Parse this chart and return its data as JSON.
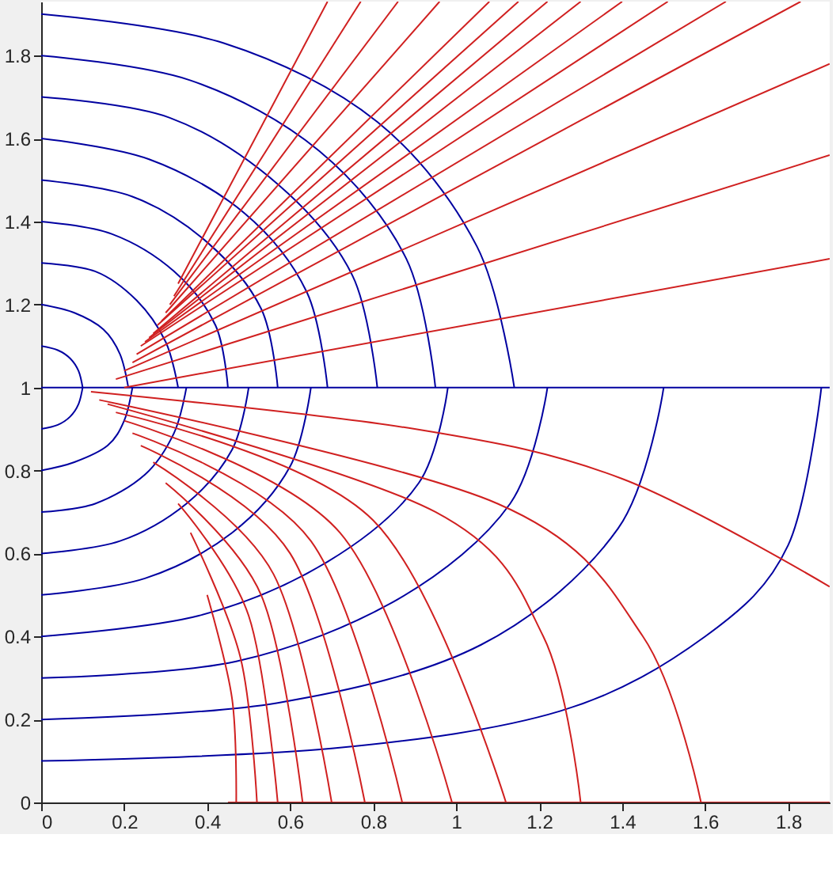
{
  "chart_data": {
    "type": "line",
    "xlim": [
      0,
      1.9
    ],
    "ylim": [
      0,
      1.93
    ],
    "xticks": [
      0,
      0.2,
      0.4,
      0.6,
      0.8,
      1,
      1.2,
      1.4,
      1.6,
      1.8
    ],
    "yticks": [
      0,
      0.2,
      0.4,
      0.6,
      0.8,
      1,
      1.2,
      1.4,
      1.6,
      1.8
    ],
    "grid": false,
    "legend": false,
    "marker": "none",
    "line_style": "solid",
    "series": [
      {
        "color": "#0000a0",
        "x": [
          0,
          1.9
        ],
        "values": [
          1,
          1
        ]
      },
      {
        "color": "#0000a0",
        "x": [
          0,
          0.04,
          0.07,
          0.09,
          0.1
        ],
        "values": [
          1.1,
          1.09,
          1.07,
          1.04,
          1
        ]
      },
      {
        "color": "#0000a0",
        "x": [
          0,
          0.08,
          0.15,
          0.19,
          0.21
        ],
        "values": [
          1.2,
          1.18,
          1.14,
          1.08,
          1
        ]
      },
      {
        "color": "#0000a0",
        "x": [
          0,
          0.13,
          0.23,
          0.3,
          0.33
        ],
        "values": [
          1.3,
          1.28,
          1.21,
          1.11,
          1
        ]
      },
      {
        "color": "#0000a0",
        "x": [
          0,
          0.17,
          0.32,
          0.42,
          0.45
        ],
        "values": [
          1.4,
          1.37,
          1.28,
          1.15,
          1
        ]
      },
      {
        "color": "#0000a0",
        "x": [
          0,
          0.22,
          0.4,
          0.53,
          0.57
        ],
        "values": [
          1.5,
          1.46,
          1.35,
          1.19,
          1
        ]
      },
      {
        "color": "#0000a0",
        "x": [
          0,
          0.26,
          0.49,
          0.64,
          0.69
        ],
        "values": [
          1.6,
          1.55,
          1.42,
          1.23,
          1
        ]
      },
      {
        "color": "#0000a0",
        "x": [
          0,
          0.31,
          0.57,
          0.75,
          0.81
        ],
        "values": [
          1.7,
          1.65,
          1.49,
          1.27,
          1
        ]
      },
      {
        "color": "#0000a0",
        "x": [
          0,
          0.36,
          0.67,
          0.88,
          0.95
        ],
        "values": [
          1.8,
          1.74,
          1.57,
          1.31,
          1
        ]
      },
      {
        "color": "#0000a0",
        "x": [
          0,
          0.44,
          0.81,
          1.05,
          1.14
        ],
        "values": [
          1.9,
          1.83,
          1.64,
          1.34,
          1
        ]
      },
      {
        "color": "#0000a0",
        "x": [
          0,
          0.04,
          0.07,
          0.09,
          0.1
        ],
        "values": [
          0.9,
          0.91,
          0.93,
          0.96,
          1
        ]
      },
      {
        "color": "#0000a0",
        "x": [
          0,
          0.08,
          0.16,
          0.2,
          0.22
        ],
        "values": [
          0.8,
          0.82,
          0.86,
          0.92,
          1
        ]
      },
      {
        "color": "#0000a0",
        "x": [
          0,
          0.13,
          0.25,
          0.32,
          0.35
        ],
        "values": [
          0.7,
          0.72,
          0.79,
          0.89,
          1
        ]
      },
      {
        "color": "#0000a0",
        "x": [
          0,
          0.19,
          0.35,
          0.46,
          0.5
        ],
        "values": [
          0.6,
          0.63,
          0.72,
          0.85,
          1
        ]
      },
      {
        "color": "#0000a0",
        "x": [
          0,
          0.25,
          0.46,
          0.6,
          0.65
        ],
        "values": [
          0.5,
          0.54,
          0.65,
          0.81,
          1
        ]
      },
      {
        "color": "#0000a0",
        "x": [
          0,
          0.38,
          0.69,
          0.91,
          0.98
        ],
        "values": [
          0.4,
          0.45,
          0.58,
          0.77,
          1
        ]
      },
      {
        "color": "#0000a0",
        "x": [
          0,
          0.47,
          0.86,
          1.13,
          1.22
        ],
        "values": [
          0.3,
          0.34,
          0.49,
          0.72,
          1
        ]
      },
      {
        "color": "#0000a0",
        "x": [
          0,
          0.57,
          1.06,
          1.39,
          1.5
        ],
        "values": [
          0.2,
          0.24,
          0.38,
          0.66,
          1
        ]
      },
      {
        "color": "#0000a0",
        "x": [
          0,
          0.7,
          1.25,
          1.6,
          1.8,
          1.88
        ],
        "values": [
          0.1,
          0.13,
          0.22,
          0.4,
          0.62,
          1
        ]
      },
      {
        "color": "#d02020",
        "x": [
          0.45,
          1.9
        ],
        "values": [
          0,
          0
        ]
      },
      {
        "color": "#d02020",
        "x": [
          0.4,
          0.46,
          0.47
        ],
        "values": [
          0.5,
          0.25,
          0
        ]
      },
      {
        "color": "#d02020",
        "x": [
          0.36,
          0.48,
          0.52
        ],
        "values": [
          0.65,
          0.35,
          0
        ]
      },
      {
        "color": "#d02020",
        "x": [
          0.33,
          0.5,
          0.57
        ],
        "values": [
          0.72,
          0.45,
          0
        ]
      },
      {
        "color": "#d02020",
        "x": [
          0.3,
          0.53,
          0.63
        ],
        "values": [
          0.77,
          0.5,
          0
        ]
      },
      {
        "color": "#d02020",
        "x": [
          0.27,
          0.56,
          0.7
        ],
        "values": [
          0.82,
          0.55,
          0
        ]
      },
      {
        "color": "#d02020",
        "x": [
          0.24,
          0.6,
          0.78
        ],
        "values": [
          0.86,
          0.6,
          0
        ]
      },
      {
        "color": "#d02020",
        "x": [
          0.22,
          0.65,
          0.87
        ],
        "values": [
          0.89,
          0.63,
          0
        ]
      },
      {
        "color": "#d02020",
        "x": [
          0.2,
          0.72,
          0.99
        ],
        "values": [
          0.92,
          0.65,
          0
        ]
      },
      {
        "color": "#d02020",
        "x": [
          0.18,
          0.8,
          1.12
        ],
        "values": [
          0.94,
          0.68,
          0
        ]
      },
      {
        "color": "#d02020",
        "x": [
          0.16,
          0.95,
          1.21,
          1.3
        ],
        "values": [
          0.96,
          0.7,
          0.4,
          0
        ]
      },
      {
        "color": "#d02020",
        "x": [
          0.14,
          1.1,
          1.45,
          1.59
        ],
        "values": [
          0.97,
          0.72,
          0.4,
          0
        ]
      },
      {
        "color": "#d02020",
        "x": [
          0.12,
          0.9,
          1.4,
          1.9
        ],
        "values": [
          0.99,
          0.9,
          0.78,
          0.52
        ]
      },
      {
        "color": "#d02020",
        "x": [
          0.2,
          1.9
        ],
        "values": [
          1.0,
          1.31
        ]
      },
      {
        "color": "#d02020",
        "x": [
          0.18,
          1.9
        ],
        "values": [
          1.02,
          1.56
        ]
      },
      {
        "color": "#d02020",
        "x": [
          0.2,
          1.9
        ],
        "values": [
          1.04,
          1.78
        ]
      },
      {
        "color": "#d02020",
        "x": [
          0.22,
          1.83
        ],
        "values": [
          1.06,
          1.93
        ]
      },
      {
        "color": "#d02020",
        "x": [
          0.23,
          1.65
        ],
        "values": [
          1.08,
          1.93
        ]
      },
      {
        "color": "#d02020",
        "x": [
          0.24,
          1.51
        ],
        "values": [
          1.1,
          1.93
        ]
      },
      {
        "color": "#d02020",
        "x": [
          0.25,
          1.4
        ],
        "values": [
          1.11,
          1.93
        ]
      },
      {
        "color": "#d02020",
        "x": [
          0.26,
          1.3
        ],
        "values": [
          1.12,
          1.93
        ]
      },
      {
        "color": "#d02020",
        "x": [
          0.27,
          1.22
        ],
        "values": [
          1.13,
          1.93
        ]
      },
      {
        "color": "#d02020",
        "x": [
          0.28,
          1.15
        ],
        "values": [
          1.15,
          1.93
        ]
      },
      {
        "color": "#d02020",
        "x": [
          0.29,
          1.08
        ],
        "values": [
          1.16,
          1.93
        ]
      },
      {
        "color": "#d02020",
        "x": [
          0.3,
          0.96
        ],
        "values": [
          1.18,
          1.93
        ]
      },
      {
        "color": "#d02020",
        "x": [
          0.31,
          0.86
        ],
        "values": [
          1.2,
          1.93
        ]
      },
      {
        "color": "#d02020",
        "x": [
          0.32,
          0.77
        ],
        "values": [
          1.22,
          1.93
        ]
      },
      {
        "color": "#d02020",
        "x": [
          0.33,
          0.69
        ],
        "values": [
          1.25,
          1.93
        ]
      }
    ]
  }
}
